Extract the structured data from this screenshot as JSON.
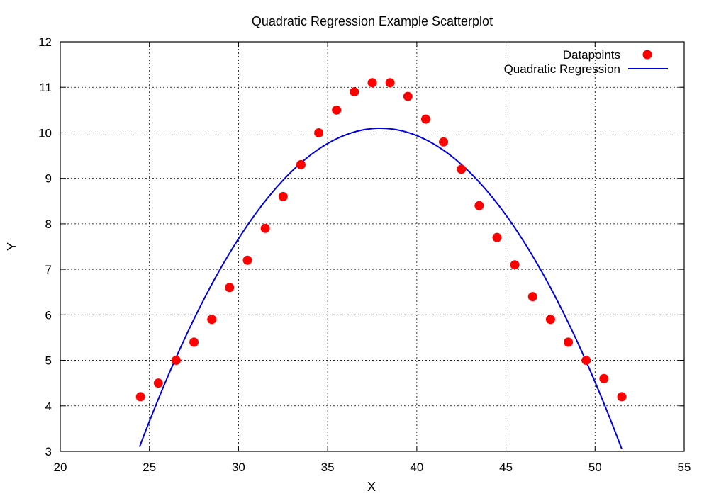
{
  "chart_data": {
    "type": "scatter",
    "title": "Quadratic Regression Example Scatterplot",
    "xlabel": "X",
    "ylabel": "Y",
    "xlim": [
      20,
      55
    ],
    "ylim": [
      3,
      12
    ],
    "xticks": [
      20,
      25,
      30,
      35,
      40,
      45,
      50,
      55
    ],
    "yticks": [
      3,
      4,
      5,
      6,
      7,
      8,
      9,
      10,
      11,
      12
    ],
    "grid": true,
    "legend_position": "top-right",
    "series": [
      {
        "name": "Datapoints",
        "kind": "scatter",
        "color": "#ff0000",
        "points": [
          [
            24.5,
            4.2
          ],
          [
            25.5,
            4.5
          ],
          [
            26.5,
            5.0
          ],
          [
            27.5,
            5.4
          ],
          [
            28.5,
            5.9
          ],
          [
            29.5,
            6.6
          ],
          [
            30.5,
            7.2
          ],
          [
            31.5,
            7.9
          ],
          [
            32.5,
            8.6
          ],
          [
            33.5,
            9.3
          ],
          [
            34.5,
            10.0
          ],
          [
            35.5,
            10.5
          ],
          [
            36.5,
            10.9
          ],
          [
            37.5,
            11.1
          ],
          [
            38.5,
            11.1
          ],
          [
            39.5,
            10.8
          ],
          [
            40.5,
            10.3
          ],
          [
            41.5,
            9.8
          ],
          [
            42.5,
            9.2
          ],
          [
            43.5,
            8.4
          ],
          [
            44.5,
            7.7
          ],
          [
            45.5,
            7.1
          ],
          [
            46.5,
            6.4
          ],
          [
            47.5,
            5.9
          ],
          [
            48.5,
            5.4
          ],
          [
            49.5,
            5.0
          ],
          [
            50.5,
            4.6
          ],
          [
            51.5,
            4.2
          ]
        ]
      },
      {
        "name": "Quadratic Regression",
        "kind": "line",
        "color": "#0000e0",
        "x_range": [
          24.45,
          51.5
        ],
        "vertex": [
          37.95,
          10.1
        ],
        "a": -0.0384
      }
    ]
  }
}
